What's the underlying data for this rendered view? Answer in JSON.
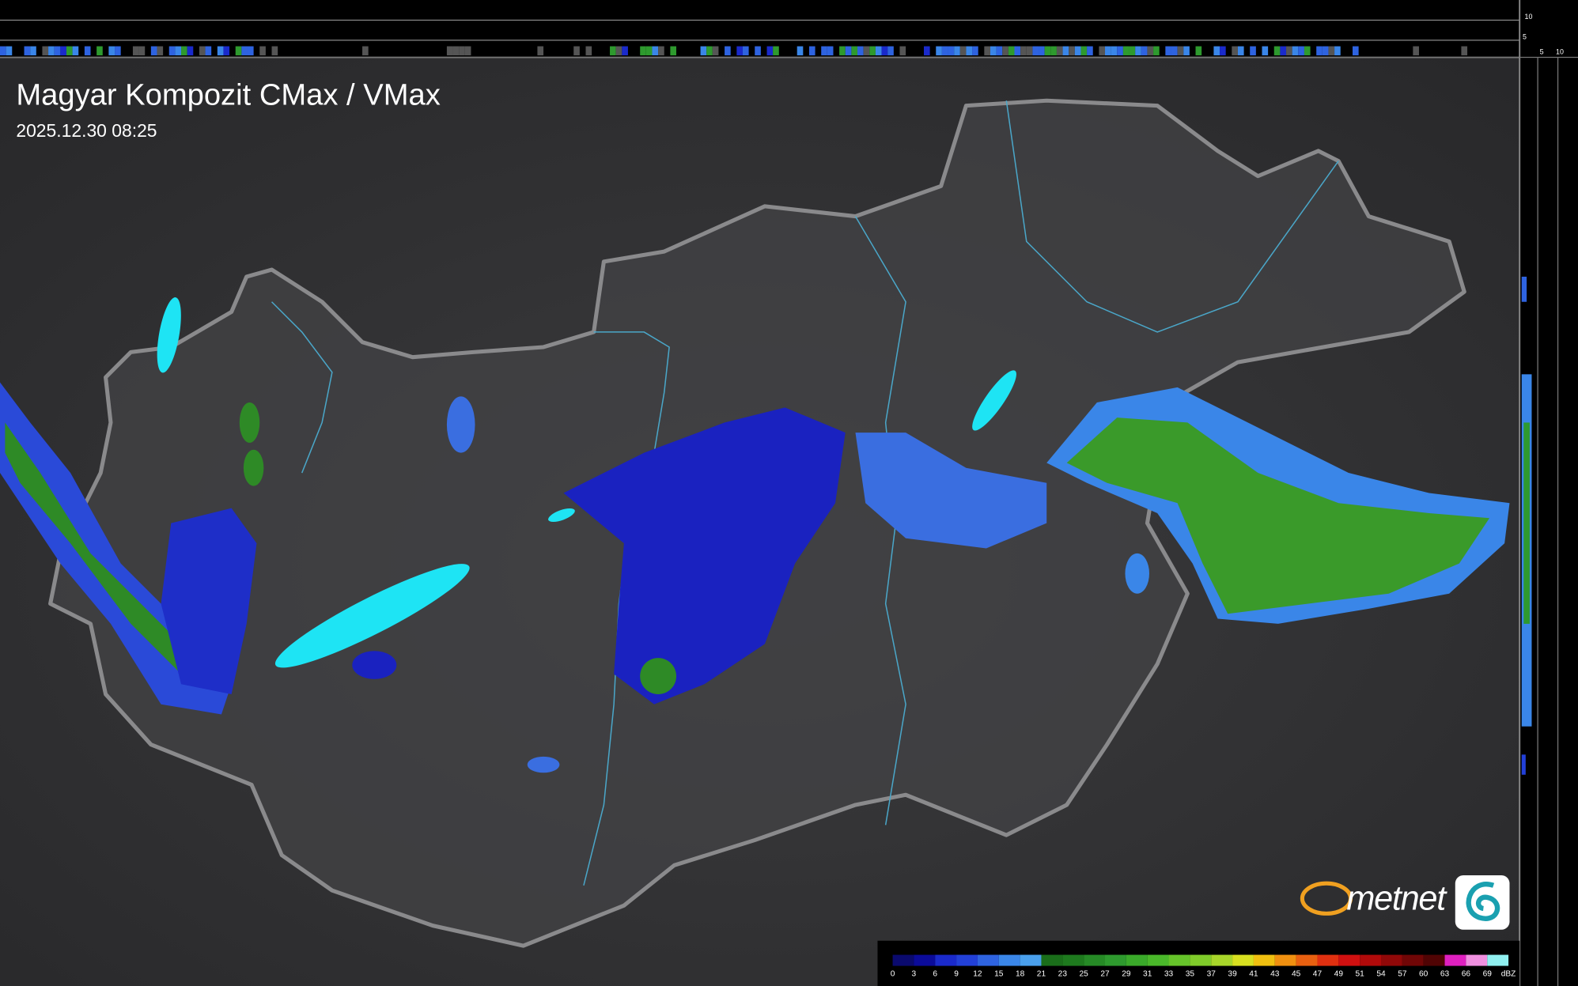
{
  "header": {
    "title": "Magyar Kompozit CMax / VMax",
    "timestamp": "2025.12.30 08:25"
  },
  "side_scale": {
    "top_labels": [
      "10",
      "5"
    ],
    "bottom_labels": [
      "5",
      "10"
    ]
  },
  "logo": {
    "text": "metnet"
  },
  "legend": {
    "values": [
      0,
      3,
      6,
      9,
      12,
      15,
      18,
      21,
      23,
      25,
      27,
      29,
      31,
      33,
      35,
      37,
      39,
      41,
      43,
      45,
      47,
      49,
      51,
      54,
      57,
      60,
      63,
      66,
      69
    ],
    "unit": "dBZ",
    "colors": [
      "#0a0a6e",
      "#0b0b9a",
      "#1a2acb",
      "#2240d8",
      "#2e63e0",
      "#3a86e8",
      "#4aa0ec",
      "#1a6e1a",
      "#1e7a1e",
      "#268a26",
      "#2e9a2e",
      "#3aaa2a",
      "#4ab82a",
      "#66c42a",
      "#80cc2a",
      "#a8d62a",
      "#d8e020",
      "#f0c010",
      "#f09010",
      "#e86010",
      "#e03010",
      "#d01010",
      "#b00a0a",
      "#900808",
      "#700606",
      "#500404",
      "#e020c0",
      "#f090e0",
      "#90f0f0"
    ]
  }
}
